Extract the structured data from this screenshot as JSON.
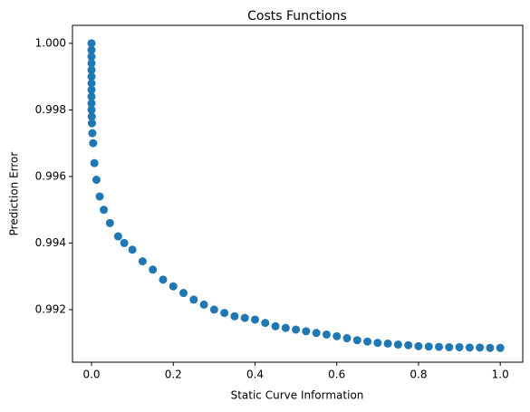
{
  "chart_data": {
    "type": "scatter",
    "title": "Costs Functions",
    "xlabel": "Static Curve Information",
    "ylabel": "Prediction Error",
    "color": "#1f77b4",
    "xlim": [
      -0.0466,
      1.055
    ],
    "ylim": [
      0.99042,
      1.00054
    ],
    "xticks": [
      {
        "value": 0,
        "label": "0.0"
      },
      0.2,
      0.4,
      0.6,
      0.8,
      {
        "value": 1,
        "label": "1.0"
      }
    ],
    "yticks": [
      0.992,
      0.994,
      0.996,
      0.998,
      {
        "value": 1,
        "label": "1.000"
      }
    ],
    "x": [
      0,
      0,
      0,
      0,
      0,
      0,
      0,
      0,
      0,
      0,
      0,
      0.0005,
      0.001,
      0.002,
      0.004,
      0.007,
      0.012,
      0.02,
      0.03,
      0.045,
      0.065,
      0.08,
      0.1,
      0.125,
      0.15,
      0.175,
      0.2,
      0.225,
      0.25,
      0.275,
      0.3,
      0.325,
      0.35,
      0.375,
      0.4,
      0.425,
      0.45,
      0.475,
      0.5,
      0.525,
      0.55,
      0.575,
      0.6,
      0.625,
      0.65,
      0.675,
      0.7,
      0.725,
      0.75,
      0.775,
      0.8,
      0.825,
      0.85,
      0.875,
      0.9,
      0.925,
      0.95,
      0.975,
      1.0
    ],
    "y": [
      1.0,
      0.9998,
      0.9996,
      0.9994,
      0.9992,
      0.999,
      0.9988,
      0.9986,
      0.9984,
      0.9982,
      0.998,
      0.9978,
      0.9976,
      0.9973,
      0.997,
      0.9964,
      0.9959,
      0.9954,
      0.995,
      0.9946,
      0.9942,
      0.994,
      0.9938,
      0.99345,
      0.9932,
      0.9929,
      0.9927,
      0.9925,
      0.9923,
      0.99215,
      0.992,
      0.9919,
      0.9918,
      0.99175,
      0.9917,
      0.9916,
      0.9915,
      0.99145,
      0.9914,
      0.99135,
      0.9913,
      0.99125,
      0.9912,
      0.99114,
      0.99108,
      0.99104,
      0.991,
      0.99098,
      0.99095,
      0.99093,
      0.9909,
      0.99089,
      0.99088,
      0.99087,
      0.99087,
      0.99086,
      0.99086,
      0.99085,
      0.99085
    ]
  }
}
